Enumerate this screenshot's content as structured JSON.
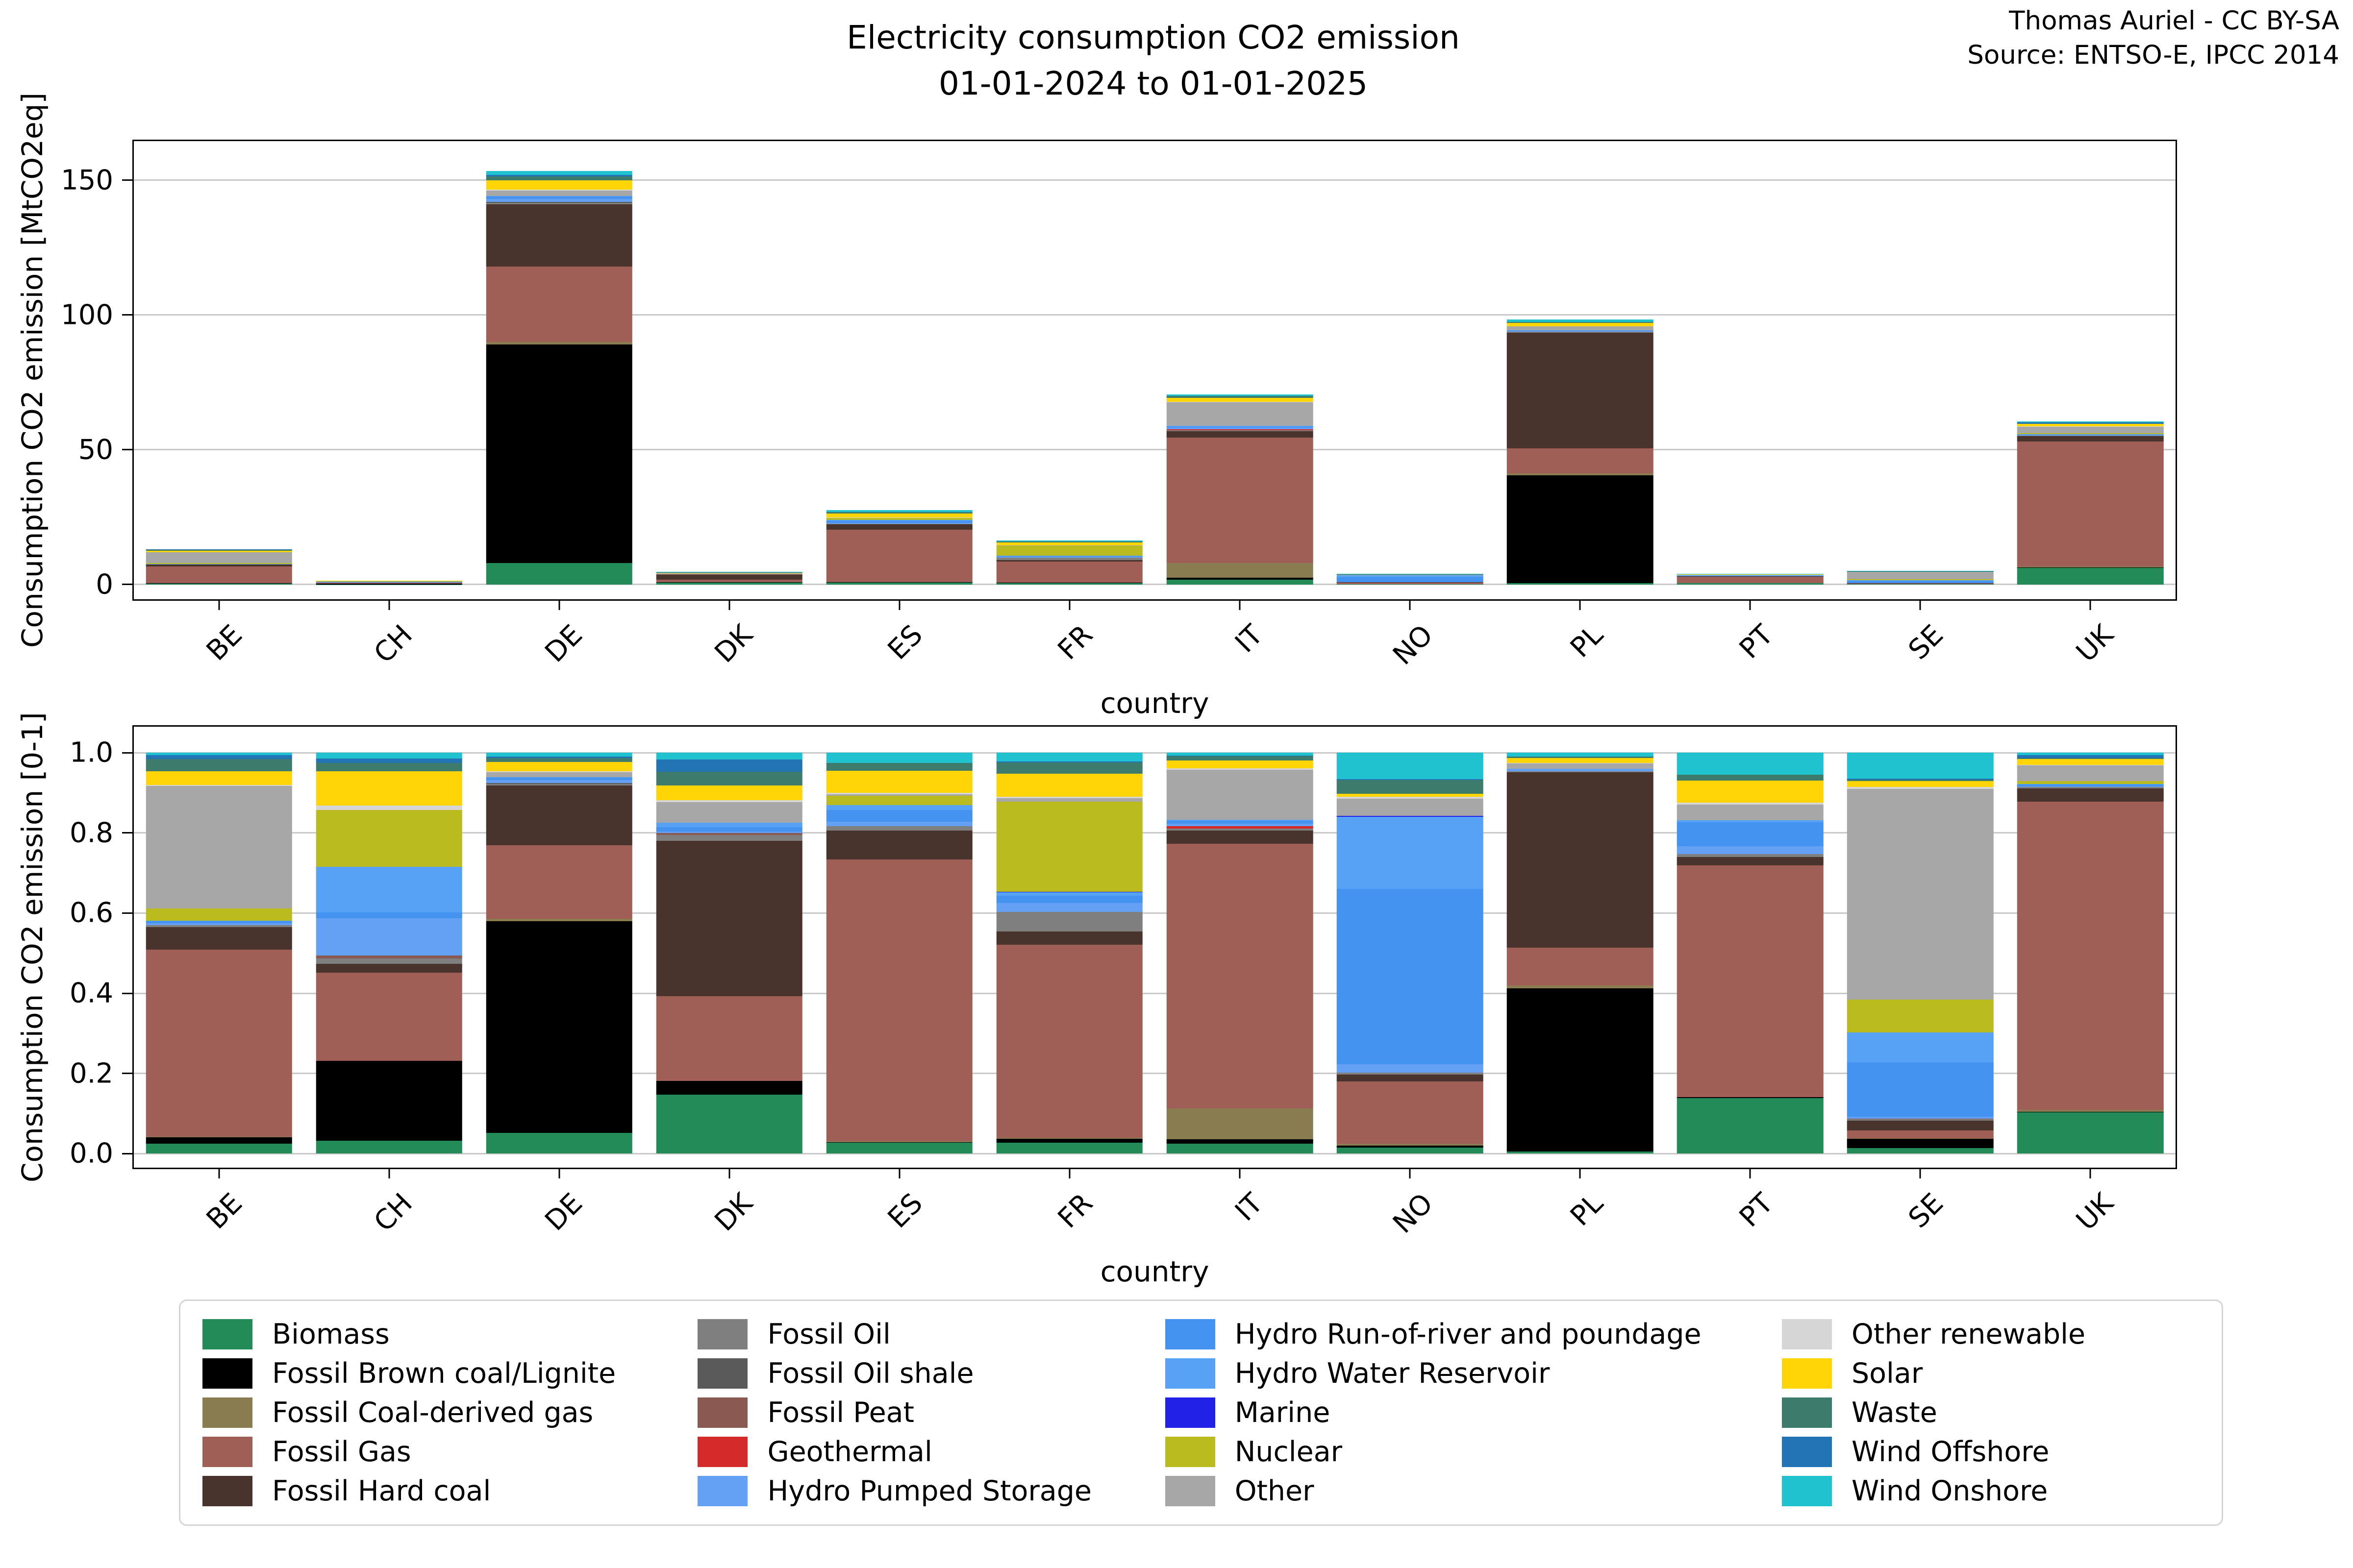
{
  "header": {
    "title_line1": "Electricity consumption CO2 emission",
    "title_line2": "01-01-2024 to 01-01-2025",
    "credit_line1": "Thomas Auriel - CC BY-SA",
    "credit_line2": "Source: ENTSO-E, IPCC 2014"
  },
  "chart_data": {
    "type": "bar",
    "stacked": true,
    "grid": true,
    "legend_position": "bottom",
    "xlabel": "country",
    "categories": [
      "BE",
      "CH",
      "DE",
      "DK",
      "ES",
      "FR",
      "IT",
      "NO",
      "PL",
      "PT",
      "SE",
      "UK"
    ],
    "units": "MtCO2eq",
    "series": [
      {
        "name": "Biomass",
        "color": "#228b57",
        "values": [
          0.33,
          0.045,
          8,
          0.68,
          0.75,
          0.45,
          1.8,
          0.06,
          0.5,
          0.56,
          0.07,
          6.2
        ]
      },
      {
        "name": "Fossil Brown coal/Lignite",
        "color": "#000000",
        "values": [
          0.2,
          0.28,
          81,
          0.16,
          0.05,
          0.15,
          0.7,
          0.02,
          40,
          0.01,
          0.12,
          0.1
        ]
      },
      {
        "name": "Fossil Coal-derived gas",
        "color": "#8a7c51",
        "values": [
          0.02,
          0,
          1.0,
          0,
          0.05,
          0.05,
          5.5,
          0.02,
          0.7,
          0,
          0.01,
          0.3
        ]
      },
      {
        "name": "Fossil Gas",
        "color": "#a05f56",
        "values": [
          6.1,
          0.31,
          28,
          0.98,
          19.4,
          7.9,
          46.5,
          0.62,
          9.3,
          2.33,
          0.1,
          46.5
        ]
      },
      {
        "name": "Fossil Hard coal",
        "color": "#49332d",
        "values": [
          0.75,
          0.03,
          23,
          1.8,
          2.0,
          0.55,
          2.4,
          0.07,
          43,
          0.08,
          0.12,
          2.0
        ]
      },
      {
        "name": "Fossil Oil",
        "color": "#7f7f7f",
        "values": [
          0.05,
          0.02,
          0.6,
          0.07,
          0.3,
          0.8,
          0.3,
          0.02,
          0.3,
          0.03,
          0.02,
          0.2
        ]
      },
      {
        "name": "Fossil Oil shale",
        "color": "#5a5a5a",
        "values": [
          0,
          0,
          0.3,
          0,
          0,
          0,
          0,
          0,
          0,
          0,
          0,
          0
        ]
      },
      {
        "name": "Fossil Peat",
        "color": "#8a5a52",
        "values": [
          0,
          0.01,
          0,
          0.02,
          0,
          0,
          0,
          0,
          0,
          0,
          0.01,
          0
        ]
      },
      {
        "name": "Geothermal",
        "color": "#d42a2a",
        "values": [
          0,
          0,
          0,
          0,
          0,
          0,
          0.4,
          0,
          0,
          0,
          0,
          0
        ]
      },
      {
        "name": "Hydro Pumped Storage",
        "color": "#64a1f4",
        "values": [
          0.07,
          0.13,
          1.2,
          0.02,
          0.3,
          0.35,
          0.5,
          0.08,
          0.4,
          0.08,
          0.02,
          0.1
        ]
      },
      {
        "name": "Hydro Run-of-river and poundage",
        "color": "#4593f0",
        "values": [
          0.06,
          0.02,
          0.8,
          0.05,
          0.8,
          0.3,
          0.5,
          1.75,
          0.1,
          0.24,
          0.7,
          0.25
        ]
      },
      {
        "name": "Hydro Water Reservoir",
        "color": "#58a2f6",
        "values": [
          0.02,
          0.16,
          0.2,
          0.05,
          0.35,
          0.15,
          0.2,
          0.72,
          0.05,
          0.02,
          0.38,
          0.1
        ]
      },
      {
        "name": "Marine",
        "color": "#2121e8",
        "values": [
          0,
          0,
          0,
          0,
          0,
          0.01,
          0,
          0.01,
          0,
          0,
          0,
          0
        ]
      },
      {
        "name": "Nuclear",
        "color": "#b9bb1f",
        "values": [
          0.4,
          0.2,
          0,
          0,
          0.65,
          3.7,
          0,
          0,
          0,
          0,
          0.42,
          0.4
        ]
      },
      {
        "name": "Other",
        "color": "#a7a7a7",
        "values": [
          4.0,
          0,
          2.0,
          0.24,
          0.1,
          0.15,
          8.8,
          0.17,
          1.4,
          0.16,
          2.7,
          2.4
        ]
      },
      {
        "name": "Other renewable",
        "color": "#d6d6d6",
        "values": [
          0.03,
          0.015,
          0.4,
          0.02,
          0.1,
          0.05,
          0.2,
          0.02,
          0.1,
          0.02,
          0.02,
          0.1
        ]
      },
      {
        "name": "Solar",
        "color": "#ffd507",
        "values": [
          0.45,
          0.12,
          3.5,
          0.17,
          1.5,
          0.95,
          1.4,
          0.03,
          1.2,
          0.22,
          0.08,
          0.9
        ]
      },
      {
        "name": "Waste",
        "color": "#3d7c6c",
        "values": [
          0.4,
          0.03,
          1.5,
          0.16,
          0.55,
          0.45,
          0.8,
          0.14,
          0.35,
          0.06,
          0.02,
          0.1
        ]
      },
      {
        "name": "Wind Offshore",
        "color": "#2274b4",
        "values": [
          0.13,
          0.015,
          0.5,
          0.14,
          0,
          0.05,
          0.05,
          0.01,
          0,
          0,
          0.01,
          0.45
        ]
      },
      {
        "name": "Wind Onshore",
        "color": "#1fc2ce",
        "values": [
          0.07,
          0.02,
          1.5,
          0.08,
          0.7,
          0.35,
          0.5,
          0.26,
          0.9,
          0.22,
          0.33,
          0.35
        ]
      }
    ],
    "subplots": [
      {
        "id": "absolute",
        "mode": "absolute",
        "ylabel": "Consumption CO2 emission [MtCO2eq]",
        "yticks": [
          "0",
          "50",
          "100",
          "150"
        ],
        "ylim": [
          -5.5,
          164.5
        ]
      },
      {
        "id": "normalized",
        "mode": "normalized",
        "ylabel": "Consumption CO2 emission [0-1]",
        "yticks": [
          "0.0",
          "0.2",
          "0.4",
          "0.6",
          "0.8",
          "1.0"
        ],
        "ylim": [
          -0.035,
          1.065
        ]
      }
    ]
  }
}
